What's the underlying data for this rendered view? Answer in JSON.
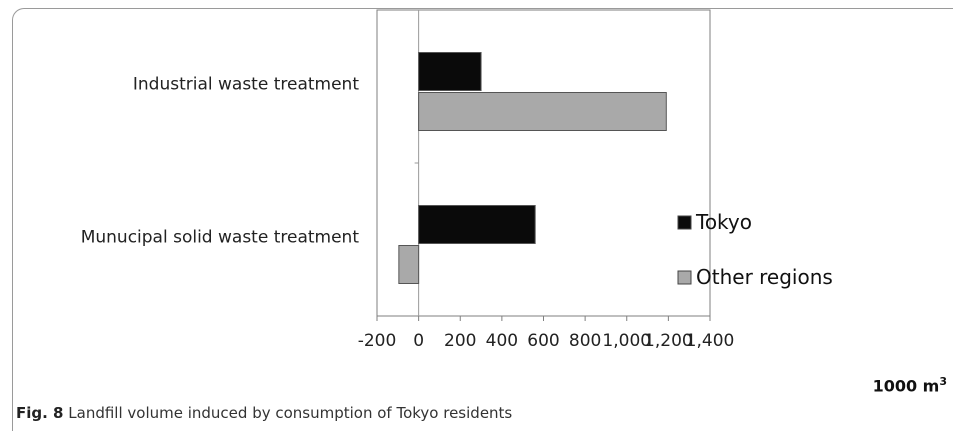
{
  "chart_data": {
    "type": "bar",
    "orientation": "horizontal",
    "categories": [
      "Industrial waste treatment",
      "Munucipal solid waste treatment"
    ],
    "series": [
      {
        "name": "Tokyo",
        "values": [
          300,
          560
        ],
        "color": "#0a0a0a"
      },
      {
        "name": "Other regions",
        "values": [
          1190,
          -95
        ],
        "color": "#a9a9a9"
      }
    ],
    "xlim": [
      -200,
      1400
    ],
    "xticks": [
      -200,
      0,
      200,
      400,
      600,
      800,
      1000,
      1200,
      1400
    ],
    "xtick_labels": [
      "-200",
      "0",
      "200",
      "400",
      "600",
      "800",
      "1,000",
      "1,200",
      "1,400"
    ],
    "xlabel": "1000 m",
    "xlabel_sup": "3",
    "legend_position": "inside-bottom-right",
    "grid": false
  },
  "caption": {
    "label": "Fig. 8",
    "text": "Landfill volume induced by consumption of Tokyo residents"
  }
}
